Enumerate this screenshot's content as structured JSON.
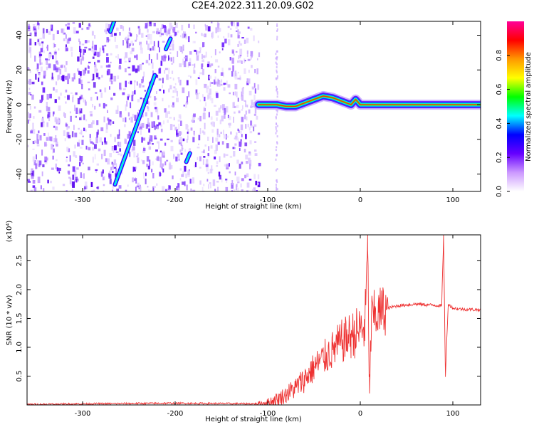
{
  "title": "C2E4.2022.311.20.09.G02",
  "chart_data": [
    {
      "type": "heatmap",
      "xlabel": "Height of straight line (km)",
      "ylabel": "Frequency (Hz)",
      "xlim": [
        -360,
        130
      ],
      "ylim": [
        -50,
        48
      ],
      "xticks": [
        -300,
        -200,
        -100,
        0,
        100
      ],
      "yticks": [
        -40,
        -20,
        0,
        20,
        40
      ],
      "colorbar": {
        "label": "Normalized spectral amplitude",
        "range": [
          0.0,
          1.0
        ],
        "ticks": [
          0.0,
          0.2,
          0.4,
          0.6,
          0.8
        ],
        "colors": [
          "#ffffff",
          "#cc99ff",
          "#6600ff",
          "#0000ff",
          "#00ffff",
          "#00ff00",
          "#ffff00",
          "#ff9900",
          "#ff0000",
          "#ff0099"
        ]
      },
      "features": {
        "chirp_main": {
          "x": [
            -265,
            -222
          ],
          "y": [
            -46,
            17
          ]
        },
        "chirp_upper": {
          "x": [
            -270,
            -266
          ],
          "y": [
            42,
            48
          ]
        },
        "chirp_right_short": {
          "x": [
            -210,
            -205
          ],
          "y": [
            32,
            38
          ]
        },
        "blob_lower": {
          "x": [
            -188,
            -184
          ],
          "y": [
            -33,
            -28
          ]
        },
        "carrier_line": {
          "x": [
            -110,
            -100,
            -90,
            -80,
            -70,
            -60,
            -50,
            -40,
            -30,
            -20,
            -10,
            -5,
            0,
            20,
            60,
            100,
            130
          ],
          "y": [
            0,
            0,
            0,
            -1,
            -1,
            1,
            3,
            5,
            4,
            2,
            0,
            3,
            0,
            0,
            0,
            0,
            0
          ]
        },
        "noise_edge_x": -110
      }
    },
    {
      "type": "line",
      "xlabel": "Height of straight line (km)",
      "ylabel": "SNR (10 * v/v)",
      "y_multiplier": "(x10⁴)",
      "xlim": [
        -360,
        130
      ],
      "ylim": [
        0,
        2.95
      ],
      "xticks": [
        -300,
        -200,
        -100,
        0,
        100
      ],
      "yticks": [
        0.5,
        1.0,
        1.5,
        2.0,
        2.5
      ],
      "series": [
        {
          "color": "#ee3333",
          "x": [
            -360,
            -300,
            -200,
            -110,
            -100,
            -90,
            -80,
            -70,
            -60,
            -50,
            -40,
            -30,
            -20,
            -10,
            0,
            5,
            8,
            10,
            12,
            20,
            30,
            40,
            60,
            80,
            88,
            90,
            92,
            95,
            100,
            110,
            130
          ],
          "y": [
            0.01,
            0.02,
            0.03,
            0.02,
            0.04,
            0.1,
            0.18,
            0.3,
            0.45,
            0.65,
            0.8,
            0.95,
            1.1,
            1.2,
            1.3,
            1.35,
            2.7,
            0.2,
            1.5,
            1.6,
            1.68,
            1.72,
            1.75,
            1.73,
            1.72,
            2.95,
            0.5,
            1.75,
            1.68,
            1.66,
            1.65
          ]
        }
      ]
    }
  ]
}
